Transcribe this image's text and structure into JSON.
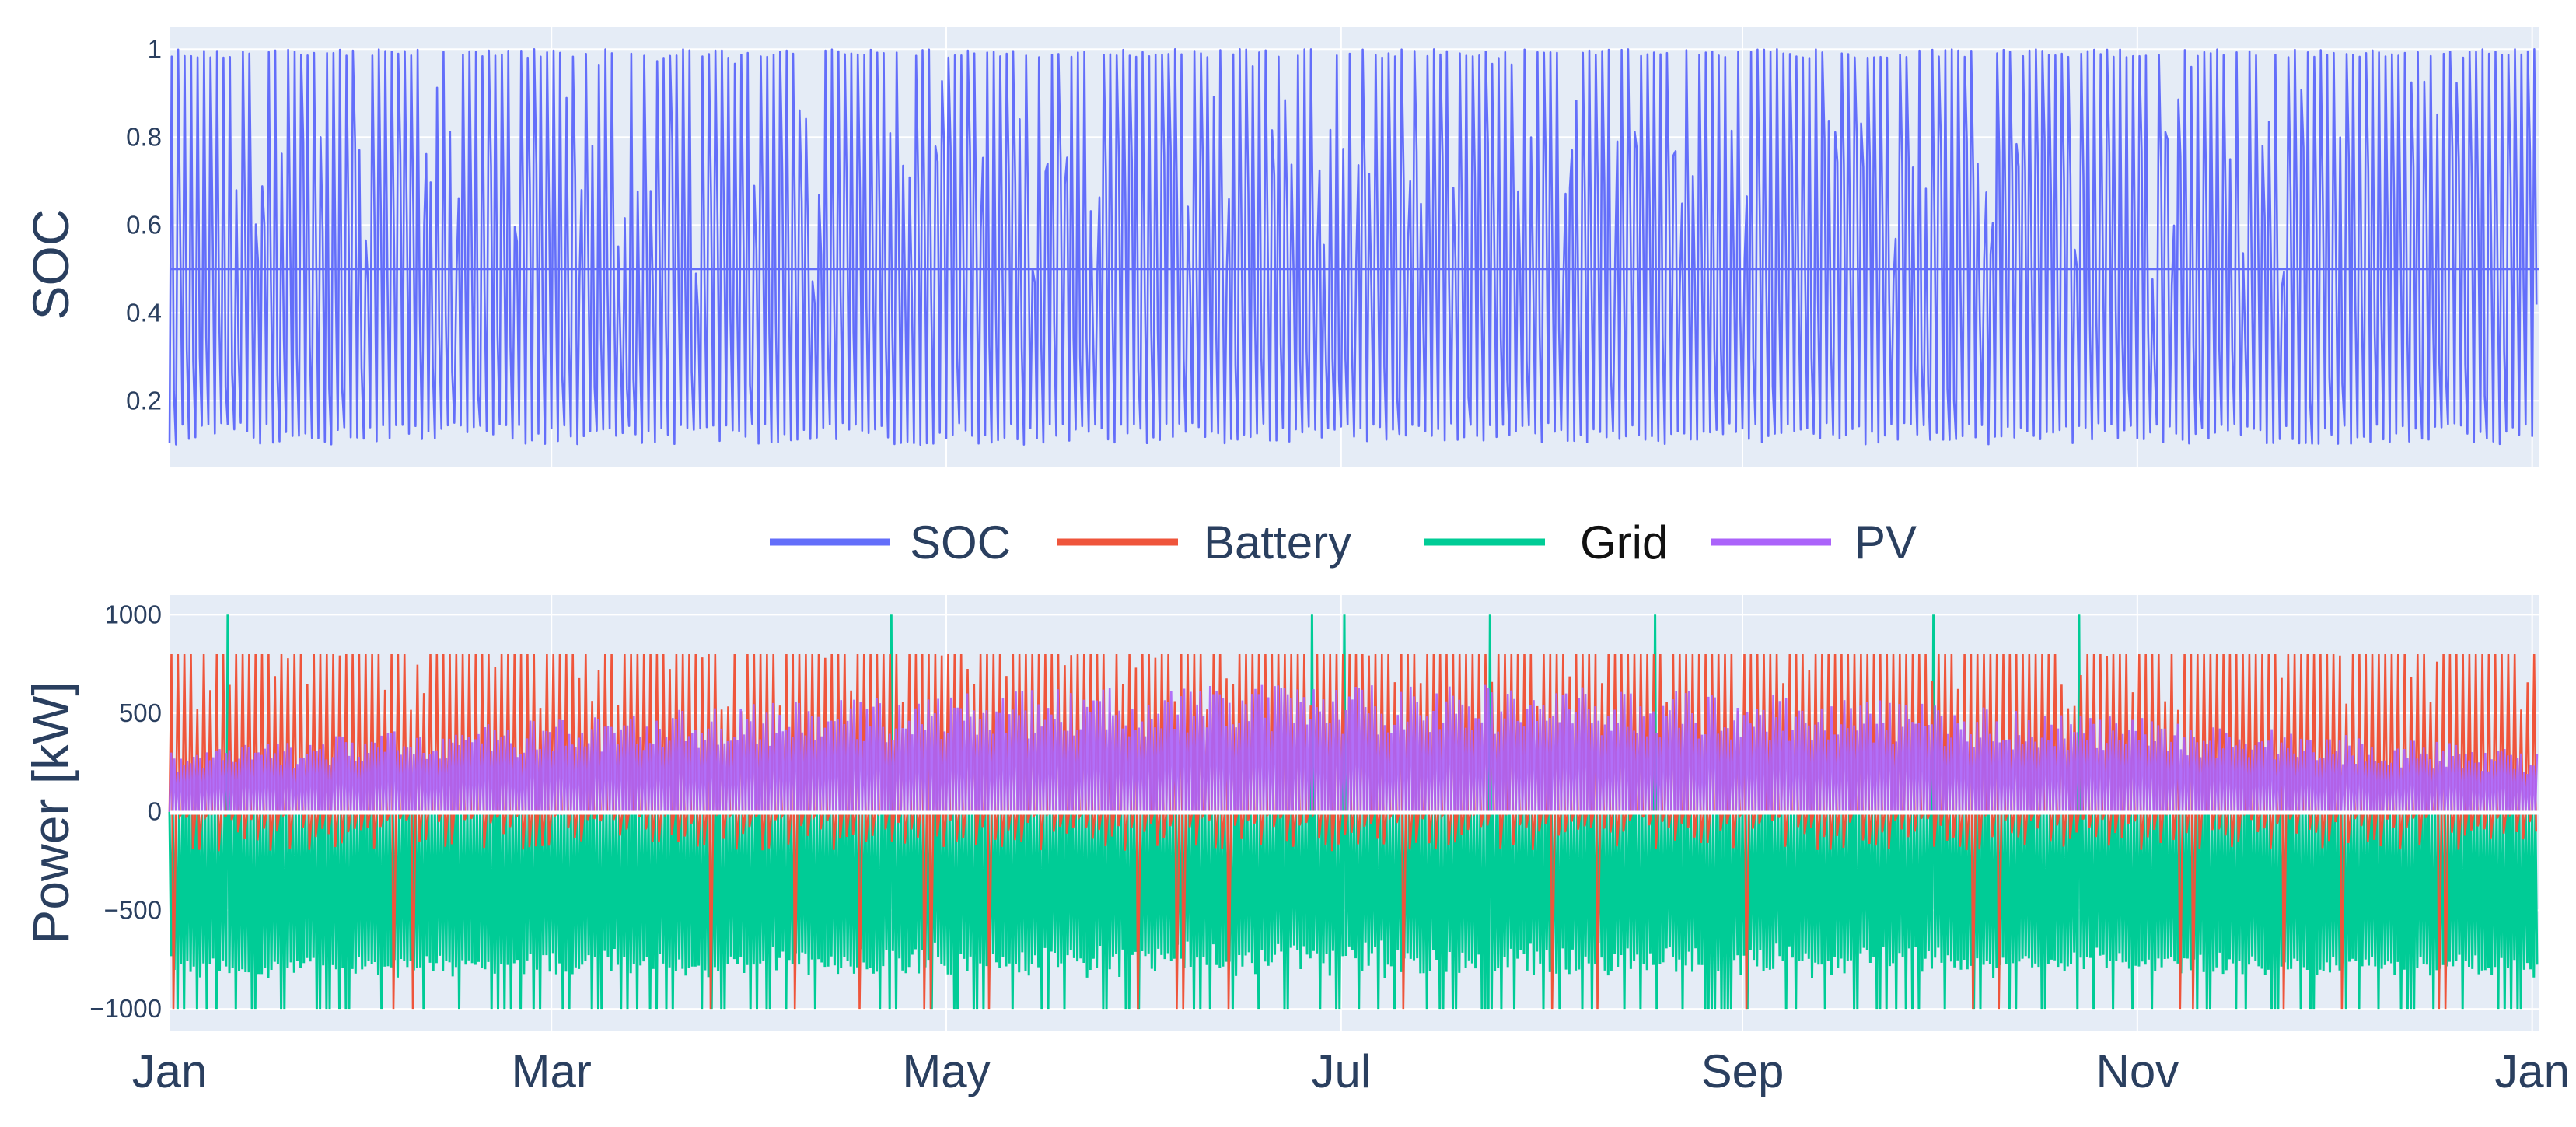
{
  "chart_data": [
    {
      "type": "line",
      "ylabel": "SOC",
      "yticks": [
        "0.2",
        "0.4",
        "0.6",
        "0.8",
        "1"
      ],
      "ytick_values": [
        0.2,
        0.4,
        0.6,
        0.8,
        1.0
      ],
      "ylim": [
        0.05,
        1.05
      ],
      "x_range": [
        "Jan",
        "Jan"
      ],
      "grid": true,
      "series": [
        {
          "name": "SOC",
          "color": "#636efa",
          "pattern": "daily charge/discharge cycles between ~0.1 and 1.0",
          "min": 0.1,
          "max": 1.0,
          "baseline": 0.5
        }
      ]
    },
    {
      "type": "line",
      "ylabel": "Power [kW]",
      "yticks": [
        "−1000",
        "−500",
        "0",
        "500",
        "1000"
      ],
      "ytick_values": [
        -1000,
        -500,
        0,
        500,
        1000
      ],
      "ylim": [
        -1110,
        1100
      ],
      "xticks": [
        "Jan",
        "Mar",
        "May",
        "Jul",
        "Sep",
        "Nov",
        "Jan"
      ],
      "grid": true,
      "series": [
        {
          "name": "Battery",
          "color": "#ef553b",
          "min": -1000,
          "max": 800,
          "typical_charge_peak": 800
        },
        {
          "name": "Grid",
          "color": "#00cc96",
          "min": -1000,
          "max": 1000,
          "typical_export_floor": -800
        },
        {
          "name": "PV",
          "color": "#ab63fa",
          "min": 0,
          "max": 650,
          "seasonal_peak_month": "Jul"
        }
      ]
    }
  ],
  "legend": {
    "placement": "between-plots",
    "items": [
      {
        "label": "SOC",
        "color": "#636efa"
      },
      {
        "label": "Battery",
        "color": "#ef553b"
      },
      {
        "label": "Grid",
        "color": "#00cc96"
      },
      {
        "label": "PV",
        "color": "#ab63fa"
      }
    ]
  }
}
